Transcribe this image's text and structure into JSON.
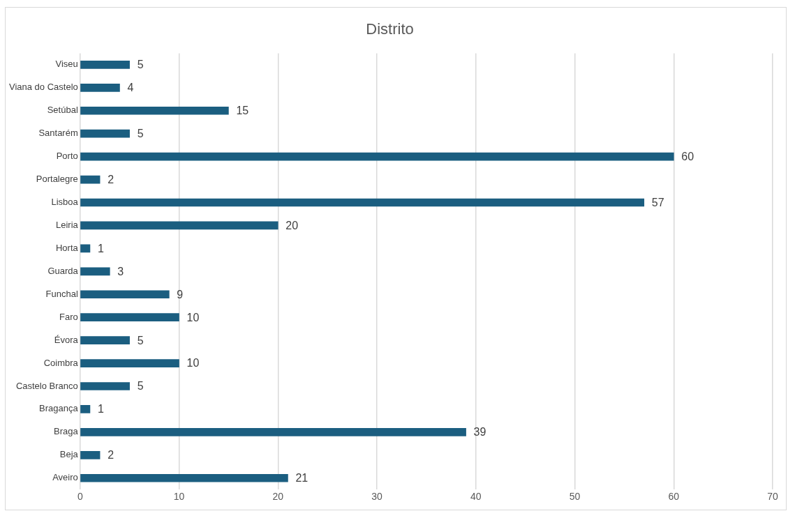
{
  "chart_data": {
    "type": "bar",
    "orientation": "horizontal",
    "title": "Distrito",
    "categories": [
      "Viseu",
      "Viana do Castelo",
      "Setúbal",
      "Santarém",
      "Porto",
      "Portalegre",
      "Lisboa",
      "Leiria",
      "Horta",
      "Guarda",
      "Funchal",
      "Faro",
      "Évora",
      "Coimbra",
      "Castelo Branco",
      "Bragança",
      "Braga",
      "Beja",
      "Aveiro"
    ],
    "values": [
      5,
      4,
      15,
      5,
      60,
      2,
      57,
      20,
      1,
      3,
      9,
      10,
      5,
      10,
      5,
      1,
      39,
      2,
      21
    ],
    "color": "#1b5e80",
    "xlim": [
      0,
      70
    ],
    "xticks": [
      0,
      10,
      20,
      30,
      40,
      50,
      60,
      70
    ],
    "grid": "x",
    "data_labels": true
  }
}
